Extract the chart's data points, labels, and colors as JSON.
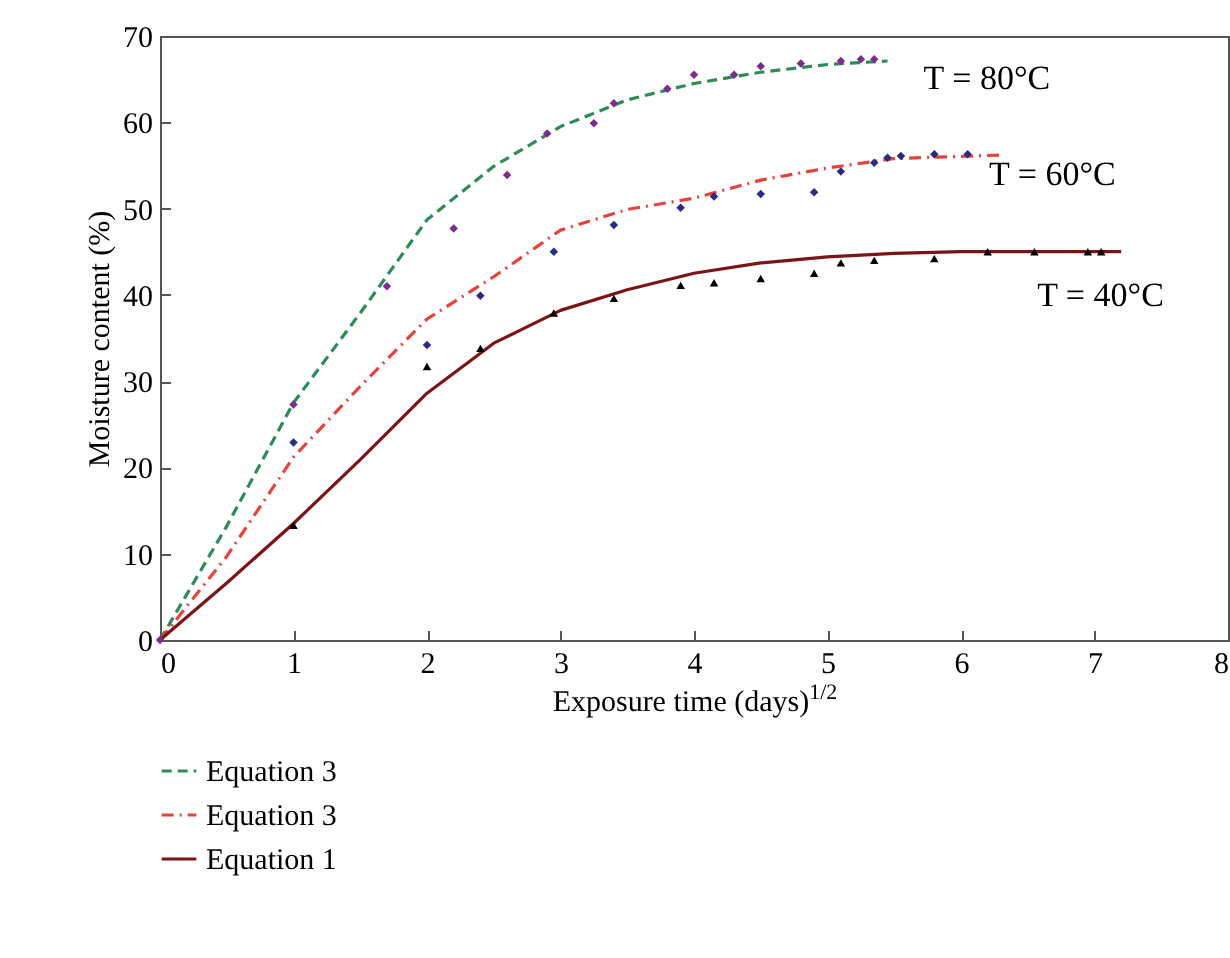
{
  "chart_data": {
    "type": "line",
    "xlabel": "Exposure time (days)$^{1/2}$",
    "ylabel": "Moisture content (%)",
    "xlim": [
      0,
      8
    ],
    "xticks": [
      0,
      1,
      2,
      3,
      4,
      5,
      6,
      7,
      8
    ],
    "ylim": [
      0,
      70
    ],
    "yticks": [
      0,
      10,
      20,
      30,
      40,
      50,
      60,
      70
    ],
    "grid": false,
    "legend": "bottom",
    "series": [
      {
        "name": "Equation 3",
        "color": "#2e8b57",
        "line_style": "dashed",
        "x": [
          0,
          0.5,
          1,
          1.5,
          2,
          2.5,
          3,
          3.5,
          4,
          4.5,
          5,
          5.45
        ],
        "values": [
          0,
          13.2,
          27.5,
          37.9,
          48.7,
          54.9,
          59.5,
          62.6,
          64.5,
          65.8,
          66.7,
          67.1
        ]
      },
      {
        "name": "Equation 3",
        "color": "#e8413c",
        "line_style": "dashdot",
        "x": [
          0,
          0.5,
          1,
          1.5,
          2,
          2.5,
          3,
          3.5,
          4,
          4.5,
          5,
          5.5,
          6.3
        ],
        "values": [
          0,
          9.7,
          21.2,
          29.4,
          37.2,
          42.1,
          47.5,
          49.9,
          51.2,
          53.3,
          54.7,
          55.8,
          56.2
        ]
      },
      {
        "name": "Equation 1",
        "color": "#7b1416",
        "line_style": "solid",
        "x": [
          0,
          0.5,
          1,
          1.5,
          2,
          2.5,
          3,
          3.5,
          4,
          4.5,
          5,
          5.5,
          6,
          7.2
        ],
        "values": [
          0,
          6.6,
          13.5,
          20.9,
          28.6,
          34.4,
          38.2,
          40.6,
          42.5,
          43.7,
          44.4,
          44.8,
          45.0,
          45.0
        ]
      },
      {
        "type": "scatter",
        "color": "#7b2d8e",
        "marker": "diamond",
        "x": [
          0,
          1,
          1.7,
          2.2,
          2.6,
          2.9,
          3.25,
          3.4,
          3.8,
          4.0,
          4.3,
          4.5,
          4.8,
          5.1,
          5.25,
          5.35
        ],
        "values": [
          0,
          27.3,
          41.0,
          47.7,
          53.9,
          58.7,
          59.9,
          62.2,
          63.9,
          65.5,
          65.5,
          66.5,
          66.8,
          67.1,
          67.3,
          67.3
        ]
      },
      {
        "type": "scatter",
        "color": "#2b2b7f",
        "marker": "diamond",
        "x": [
          1,
          2,
          2.4,
          2.95,
          3.4,
          3.9,
          4.15,
          4.5,
          4.9,
          5.1,
          5.35,
          5.45,
          5.55,
          5.8,
          6.05
        ],
        "values": [
          22.9,
          34.2,
          39.9,
          45.0,
          48.1,
          50.1,
          51.4,
          51.7,
          51.9,
          54.3,
          55.3,
          55.9,
          56.1,
          56.3,
          56.3
        ]
      },
      {
        "type": "scatter",
        "color": "#000000",
        "marker": "triangle",
        "x": [
          1,
          2,
          2.4,
          2.95,
          3.4,
          3.9,
          4.15,
          4.5,
          4.9,
          5.1,
          5.35,
          5.8,
          6.2,
          6.55,
          6.95,
          7.05
        ],
        "values": [
          13.3,
          31.7,
          33.8,
          37.9,
          39.6,
          41.1,
          41.4,
          41.9,
          42.5,
          43.7,
          44.0,
          44.2,
          45.0,
          45.0,
          45.0,
          45.0
        ]
      }
    ],
    "annotations": [
      "T = 80°C",
      "T = 60°C",
      "T = 40°C"
    ]
  }
}
